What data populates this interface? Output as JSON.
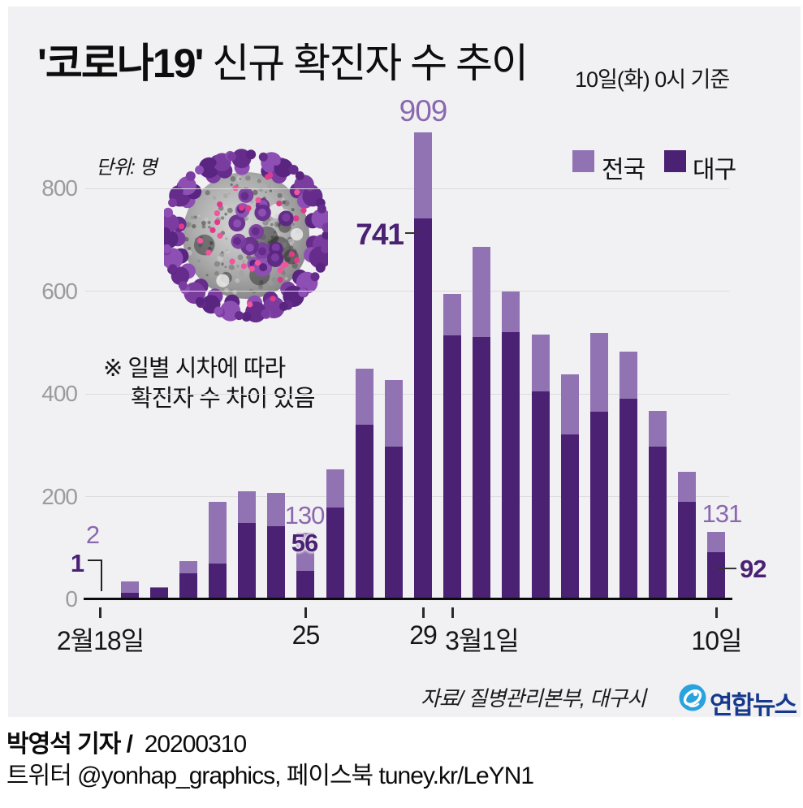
{
  "title": {
    "highlight": "'코로나19'",
    "rest": " 신규 확진자 수 추이",
    "date_note": "10일(화) 0시 기준"
  },
  "unit_label": "단위: 명",
  "note_line1": "※ 일별 시차에 따라",
  "note_line2": "확진자 수 차이 있음",
  "legend": {
    "items": [
      {
        "label": "전국",
        "color": "#9172b2"
      },
      {
        "label": "대구",
        "color": "#4b2173"
      }
    ]
  },
  "colors": {
    "panel_bg": "#f1f1f3",
    "nationwide_bar": "#9172b2",
    "daegu_bar": "#4b2173",
    "light_annotation": "#8a68ae",
    "dark_annotation": "#4a2173",
    "gridline": "#dcdcde",
    "axis_label": "#9b9b9c",
    "logo_blue": "#29a3dd",
    "logo_navy": "#17398c"
  },
  "chart_data": {
    "type": "bar",
    "style": "overlay (nationwide behind, Daegu in front)",
    "title": "'코로나19' 신규 확진자 수 추이",
    "unit": "명",
    "x": [
      "2/18",
      "2/19",
      "2/20",
      "2/21",
      "2/22",
      "2/23",
      "2/24",
      "2/25",
      "2/26",
      "2/27",
      "2/28",
      "2/29",
      "3/1",
      "3/2",
      "3/3",
      "3/4",
      "3/5",
      "3/6",
      "3/7",
      "3/8",
      "3/9",
      "3/10"
    ],
    "series": [
      {
        "name": "전국",
        "color": "#9172b2",
        "values": [
          2,
          34,
          23,
          74,
          190,
          210,
          207,
          130,
          253,
          449,
          427,
          909,
          595,
          686,
          600,
          516,
          438,
          518,
          483,
          367,
          248,
          131
        ]
      },
      {
        "name": "대구",
        "color": "#4b2173",
        "values": [
          1,
          13,
          22,
          50,
          70,
          148,
          143,
          56,
          178,
          340,
          297,
          741,
          514,
          510,
          520,
          405,
          321,
          366,
          390,
          297,
          190,
          92
        ]
      }
    ],
    "ylim": [
      0,
      909
    ],
    "yticks": [
      0,
      200,
      400,
      600,
      800
    ],
    "grid": true,
    "legend_position": "top-right",
    "xticks": [
      {
        "label": "2월18일",
        "index": 0,
        "align": "center"
      },
      {
        "label": "25",
        "index": 7,
        "align": "center"
      },
      {
        "label": "29",
        "index": 11,
        "align": "center"
      },
      {
        "label": "3월1일",
        "index": 12,
        "align": "left"
      },
      {
        "label": "10일",
        "index": 21,
        "align": "center"
      }
    ],
    "annotations": {
      "feb18_nationwide": "2",
      "feb18_daegu": "1",
      "feb25_nationwide": "130",
      "feb25_daegu": "56",
      "feb29_nationwide": "909",
      "feb29_daegu": "741",
      "mar10_nationwide": "131",
      "mar10_daegu": "92"
    }
  },
  "source": "자료/  질병관리본부, 대구시",
  "logo": {
    "text": "연합뉴스",
    "icon": "yonhap-globe"
  },
  "footer": {
    "byline_bold": "박영석 기자 /",
    "byline_date": "20200310",
    "line2": "트위터 @yonhap_graphics, 페이스북 tuney.kr/LeYN1"
  }
}
